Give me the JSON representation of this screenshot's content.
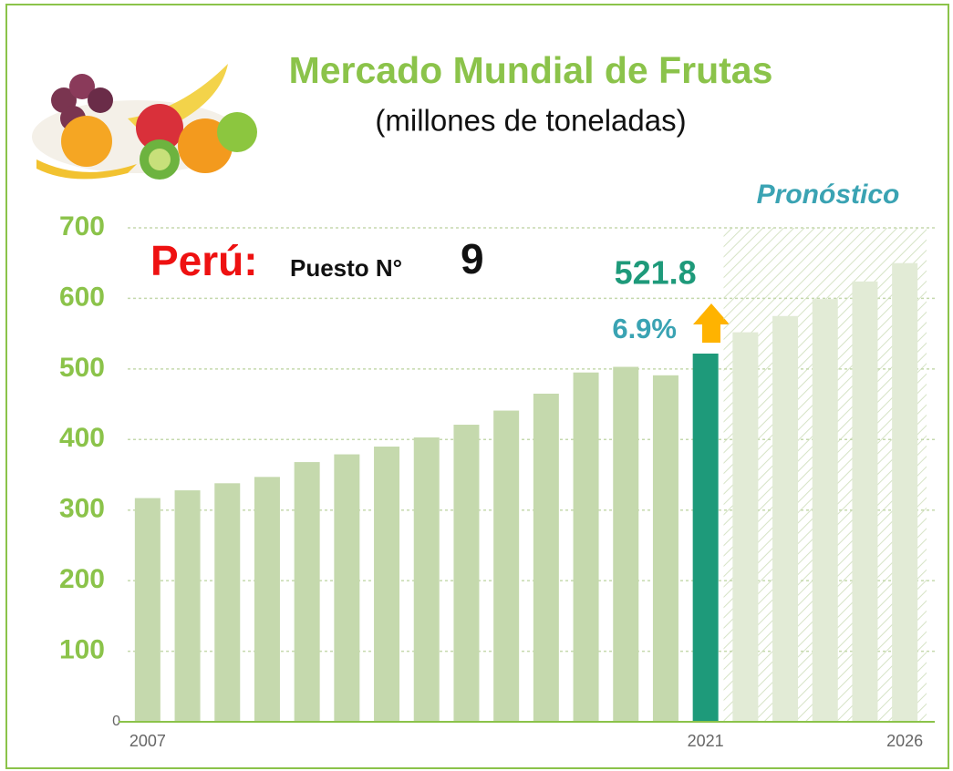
{
  "chart_data": {
    "type": "bar",
    "title": "Mercado Mundial de Frutas",
    "subtitle": "(millones de toneladas)",
    "forecast_label": "Pronóstico",
    "country_label": "Perú:",
    "rank_label": "Puesto N°",
    "rank": 9,
    "growth_label": "6.9%",
    "categories": [
      "2007",
      null,
      null,
      null,
      null,
      null,
      null,
      null,
      null,
      null,
      null,
      null,
      null,
      null,
      "2021",
      null,
      null,
      null,
      null,
      "2026"
    ],
    "values": [
      317,
      328,
      338,
      347,
      368,
      379,
      390,
      403,
      421,
      441,
      465,
      495,
      503,
      491,
      521.8,
      552,
      575,
      599,
      624,
      650
    ],
    "colors": [
      "#c5d9ad",
      "#c5d9ad",
      "#c5d9ad",
      "#c5d9ad",
      "#c5d9ad",
      "#c5d9ad",
      "#c5d9ad",
      "#c5d9ad",
      "#c5d9ad",
      "#c5d9ad",
      "#c5d9ad",
      "#c5d9ad",
      "#c5d9ad",
      "#c5d9ad",
      "#1e9a7a",
      "#e2ebd6",
      "#e2ebd6",
      "#e2ebd6",
      "#e2ebd6",
      "#e2ebd6"
    ],
    "forecast_color": "#e2ebd6",
    "highlight_color": "#1e9a7a",
    "ylim": [
      0,
      700
    ],
    "yticks": [
      0,
      100,
      200,
      300,
      400,
      500,
      600,
      700
    ],
    "grid": true
  }
}
